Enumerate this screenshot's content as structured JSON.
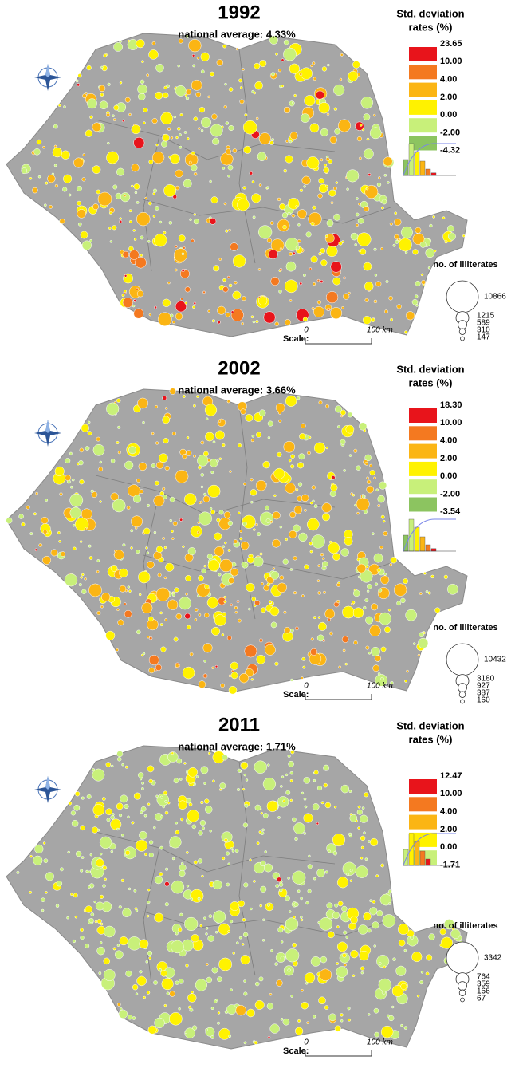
{
  "panels": [
    {
      "year": "1992",
      "subtitle": "national average: 4.33%",
      "legend_title": [
        "Std. deviation",
        "rates (%)"
      ],
      "legend_labels": [
        "23.65",
        "10.00",
        "4.00",
        "2.00",
        "0.00",
        "-2.00",
        "-4.32"
      ],
      "legend_colors": [
        "#e8141b",
        "#f47920",
        "#fbb514",
        "#fff200",
        "#c8f07a",
        "#8cc460"
      ],
      "scale": {
        "label": "Scale:",
        "zero": "0",
        "distance": "100 km"
      },
      "size_title": "no. of illiterates",
      "size_labels": [
        "10866",
        "1215",
        "589",
        "310",
        "147"
      ]
    },
    {
      "year": "2002",
      "subtitle": "national average: 3.66%",
      "legend_title": [
        "Std. deviation",
        "rates (%)"
      ],
      "legend_labels": [
        "18.30",
        "10.00",
        "4.00",
        "2.00",
        "0.00",
        "-2.00",
        "-3.54"
      ],
      "legend_colors": [
        "#e8141b",
        "#f47920",
        "#fbb514",
        "#fff200",
        "#c8f07a",
        "#8cc460"
      ],
      "scale": {
        "label": "Scale:",
        "zero": "0",
        "distance": "100 km"
      },
      "size_title": "no. of illiterates",
      "size_labels": [
        "10432",
        "3180",
        "927",
        "387",
        "160"
      ]
    },
    {
      "year": "2011",
      "subtitle": "national average: 1.71%",
      "legend_title": [
        "Std. deviation",
        "rates (%)"
      ],
      "legend_labels": [
        "12.47",
        "10.00",
        "4.00",
        "2.00",
        "0.00",
        "-1.71"
      ],
      "legend_colors": [
        "#e8141b",
        "#f47920",
        "#fbb514",
        "#fff200",
        "#c8f07a"
      ],
      "scale": {
        "label": "Scale:",
        "zero": "0",
        "distance": "100 km"
      },
      "size_title": "no. of illiterates",
      "size_labels": [
        "3342",
        "764",
        "359",
        "166",
        "67"
      ]
    }
  ]
}
